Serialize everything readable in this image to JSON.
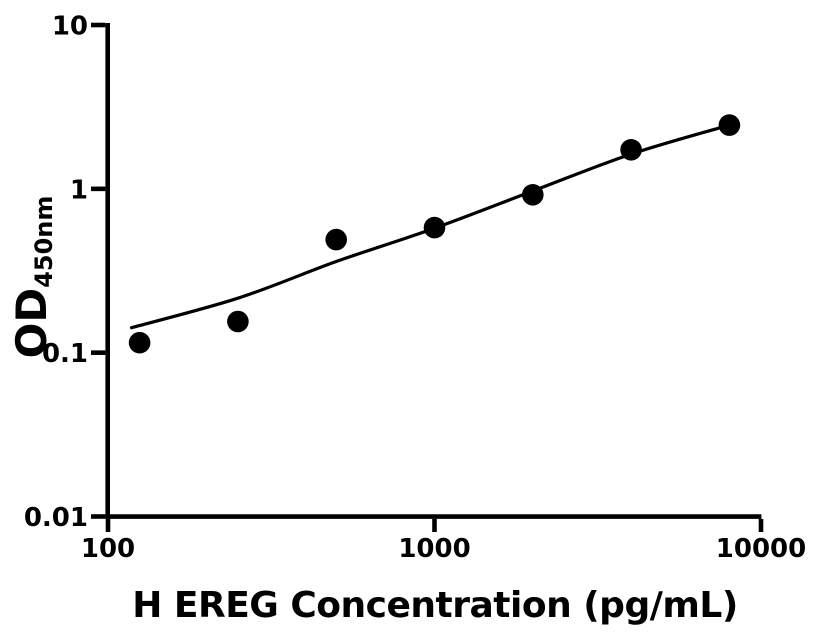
{
  "figure": {
    "background_color": "#ffffff",
    "foreground_color": "#000000"
  },
  "chart_data": {
    "type": "scatter",
    "title": "",
    "xlabel": "H EREG Concentration (pg/mL)",
    "ylabel": "OD",
    "ylabel_subscript": "450nm",
    "x_scale": "log10",
    "y_scale": "log10",
    "xlim": [
      100,
      10000
    ],
    "ylim": [
      0.01,
      10
    ],
    "grid": false,
    "legend": "none",
    "x_ticks": {
      "values": [
        100,
        1000,
        10000
      ],
      "labels": [
        "100",
        "1000",
        "10000"
      ]
    },
    "y_ticks": {
      "values": [
        0.01,
        0.1,
        1,
        10
      ],
      "labels": [
        "0.01",
        "0.1",
        "1",
        "10"
      ]
    },
    "series": [
      {
        "name": "standard-data-points",
        "type": "scatter",
        "marker": "filled-circle",
        "color": "#000000",
        "points": [
          {
            "x": 125,
            "y": 0.115
          },
          {
            "x": 250,
            "y": 0.155
          },
          {
            "x": 500,
            "y": 0.49
          },
          {
            "x": 1000,
            "y": 0.58
          },
          {
            "x": 2000,
            "y": 0.92
          },
          {
            "x": 4000,
            "y": 1.73
          },
          {
            "x": 8000,
            "y": 2.45
          }
        ]
      },
      {
        "name": "fit-curve",
        "type": "line",
        "color": "#000000",
        "points": [
          {
            "x": 118,
            "y": 0.142
          },
          {
            "x": 250,
            "y": 0.215
          },
          {
            "x": 500,
            "y": 0.36
          },
          {
            "x": 1000,
            "y": 0.575
          },
          {
            "x": 2000,
            "y": 0.97
          },
          {
            "x": 4000,
            "y": 1.63
          },
          {
            "x": 8000,
            "y": 2.45
          }
        ]
      }
    ]
  }
}
